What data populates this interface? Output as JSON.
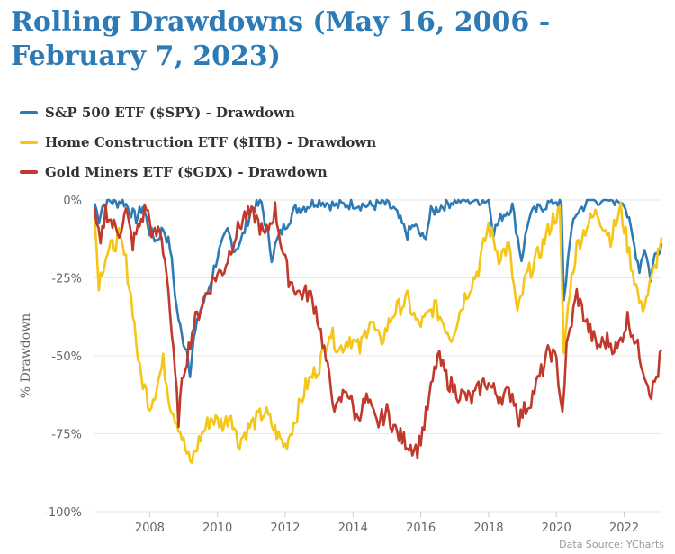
{
  "chart_data": {
    "type": "line",
    "title": "Rolling Drawdowns (May 16, 2006 - February 7, 2023)",
    "ylabel": "% Drawdown",
    "xlabel": "",
    "ylim": [
      -100,
      0
    ],
    "xlim": [
      2006.37,
      2023.1
    ],
    "y_ticks": [
      0,
      -25,
      -50,
      -75,
      -100
    ],
    "y_tick_labels": [
      "0%",
      "-25%",
      "-50%",
      "-75%",
      "-100%"
    ],
    "x_ticks": [
      2008,
      2010,
      2012,
      2014,
      2016,
      2018,
      2020,
      2022
    ],
    "x_tick_labels": [
      "2008",
      "2010",
      "2012",
      "2014",
      "2016",
      "2018",
      "2020",
      "2022"
    ],
    "grid": "horizontal",
    "legend_position": "top-left",
    "source": "Data Source: YCharts",
    "series": [
      {
        "name": "S&P 500 ETF ($SPY) - Drawdown",
        "color": "#2c7bb6",
        "x": [
          2006.37,
          2006.5,
          2006.6,
          2006.8,
          2007.0,
          2007.2,
          2007.4,
          2007.6,
          2007.8,
          2008.0,
          2008.2,
          2008.4,
          2008.6,
          2008.8,
          2008.95,
          2009.1,
          2009.19,
          2009.3,
          2009.5,
          2009.7,
          2010.0,
          2010.3,
          2010.5,
          2010.7,
          2011.0,
          2011.3,
          2011.6,
          2011.8,
          2012.0,
          2012.3,
          2012.6,
          2013.0,
          2013.5,
          2014.0,
          2014.5,
          2014.9,
          2015.2,
          2015.6,
          2015.8,
          2016.1,
          2016.3,
          2016.6,
          2017.0,
          2017.5,
          2018.0,
          2018.15,
          2018.4,
          2018.7,
          2018.97,
          2019.2,
          2019.6,
          2020.0,
          2020.15,
          2020.22,
          2020.4,
          2020.6,
          2020.8,
          2021.0,
          2021.5,
          2021.99,
          2022.2,
          2022.45,
          2022.6,
          2022.78,
          2022.9,
          2023.1
        ],
        "values": [
          -1,
          -6,
          -2,
          0,
          -1,
          0,
          -3,
          -6,
          -2,
          -10,
          -13,
          -9,
          -15,
          -35,
          -44,
          -48,
          -55,
          -45,
          -35,
          -30,
          -18,
          -10,
          -16,
          -13,
          -3,
          -1,
          -18,
          -12,
          -8,
          -3,
          -2,
          0,
          -2,
          -1,
          -2,
          -1,
          -3,
          -11,
          -8,
          -13,
          -4,
          -2,
          0,
          0,
          0,
          -10,
          -5,
          -2,
          -19,
          -5,
          -2,
          0,
          -2,
          -33,
          -12,
          -4,
          -2,
          0,
          0,
          0,
          -10,
          -22,
          -15,
          -25,
          -18,
          -14
        ]
      },
      {
        "name": "Home Construction ETF ($ITB) - Drawdown",
        "color": "#f5c518",
        "x": [
          2006.37,
          2006.5,
          2006.7,
          2006.9,
          2007.1,
          2007.3,
          2007.5,
          2007.7,
          2007.9,
          2008.0,
          2008.2,
          2008.4,
          2008.6,
          2008.85,
          2009.0,
          2009.2,
          2009.5,
          2009.8,
          2010.2,
          2010.4,
          2010.6,
          2011.0,
          2011.4,
          2011.8,
          2012.0,
          2012.3,
          2012.6,
          2013.0,
          2013.3,
          2013.6,
          2013.9,
          2014.2,
          2014.5,
          2014.8,
          2015.2,
          2015.6,
          2015.9,
          2016.1,
          2016.4,
          2016.9,
          2017.3,
          2017.7,
          2018.0,
          2018.3,
          2018.6,
          2018.85,
          2019.1,
          2019.5,
          2019.9,
          2020.1,
          2020.22,
          2020.4,
          2020.6,
          2020.9,
          2021.2,
          2021.6,
          2021.9,
          2022.2,
          2022.5,
          2022.7,
          2022.9,
          2023.1
        ],
        "values": [
          -5,
          -26,
          -18,
          -15,
          -12,
          -20,
          -35,
          -55,
          -62,
          -66,
          -60,
          -52,
          -65,
          -72,
          -78,
          -85,
          -76,
          -70,
          -72,
          -68,
          -78,
          -72,
          -68,
          -76,
          -79,
          -70,
          -60,
          -53,
          -42,
          -48,
          -44,
          -48,
          -38,
          -46,
          -36,
          -32,
          -40,
          -39,
          -34,
          -44,
          -31,
          -22,
          -8,
          -18,
          -15,
          -37,
          -25,
          -17,
          -6,
          -4,
          -49,
          -28,
          -15,
          -8,
          -4,
          -12,
          -3,
          -20,
          -35,
          -30,
          -22,
          -12
        ]
      },
      {
        "name": "Gold Miners ETF ($GDX) - Drawdown",
        "color": "#c0392b",
        "x": [
          2006.37,
          2006.55,
          2006.7,
          2006.9,
          2007.1,
          2007.3,
          2007.5,
          2007.7,
          2007.9,
          2008.1,
          2008.3,
          2008.5,
          2008.7,
          2008.85,
          2009.0,
          2009.3,
          2009.6,
          2009.9,
          2010.2,
          2010.5,
          2010.8,
          2011.1,
          2011.4,
          2011.7,
          2011.9,
          2012.1,
          2012.4,
          2012.7,
          2012.9,
          2013.1,
          2013.3,
          2013.5,
          2013.8,
          2014.1,
          2014.4,
          2014.7,
          2015.0,
          2015.3,
          2015.6,
          2015.9,
          2016.1,
          2016.5,
          2016.8,
          2017.1,
          2017.5,
          2017.9,
          2018.3,
          2018.7,
          2018.9,
          2019.2,
          2019.5,
          2019.8,
          2020.0,
          2020.18,
          2020.3,
          2020.6,
          2020.9,
          2021.2,
          2021.5,
          2021.8,
          2022.1,
          2022.3,
          2022.6,
          2022.8,
          2023.0,
          2023.1
        ],
        "values": [
          -5,
          -15,
          -3,
          -8,
          -10,
          -4,
          -14,
          -8,
          -2,
          -12,
          -10,
          -22,
          -50,
          -70,
          -55,
          -40,
          -32,
          -25,
          -22,
          -12,
          -5,
          -5,
          -12,
          -3,
          -15,
          -25,
          -30,
          -30,
          -35,
          -45,
          -58,
          -68,
          -60,
          -70,
          -64,
          -72,
          -68,
          -75,
          -78,
          -80,
          -72,
          -50,
          -58,
          -62,
          -64,
          -58,
          -63,
          -62,
          -70,
          -65,
          -57,
          -48,
          -52,
          -68,
          -48,
          -30,
          -40,
          -47,
          -45,
          -48,
          -38,
          -44,
          -55,
          -62,
          -55,
          -48
        ]
      }
    ]
  }
}
